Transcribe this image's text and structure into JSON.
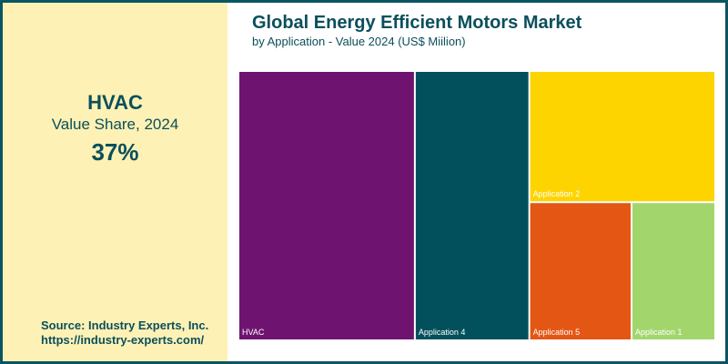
{
  "sidebar": {
    "kpi_title": "HVAC",
    "kpi_subtitle": "Value Share, 2024",
    "kpi_value": "37%",
    "source_line1": "Source: Industry Experts, Inc.",
    "source_line2": "https://industry-experts.com/"
  },
  "chart_data": {
    "type": "treemap",
    "title": "Global Energy Efficient Motors Market",
    "subtitle": "by Application - Value 2024 (US$ Miilion)",
    "items": [
      {
        "name": "HVAC",
        "share": 37,
        "color": "#6e1470"
      },
      {
        "name": "Application 4",
        "share": 24,
        "color": "#02505b"
      },
      {
        "name": "Application 2",
        "share": 19,
        "color": "#fdd400"
      },
      {
        "name": "Application 5",
        "share": 11,
        "color": "#e45613"
      },
      {
        "name": "Application 1",
        "share": 9,
        "color": "#a2d66d"
      }
    ]
  },
  "colors": {
    "frame": "#0b5563",
    "sidebar_bg": "#fdf1b5",
    "text": "#0b4f5c"
  }
}
